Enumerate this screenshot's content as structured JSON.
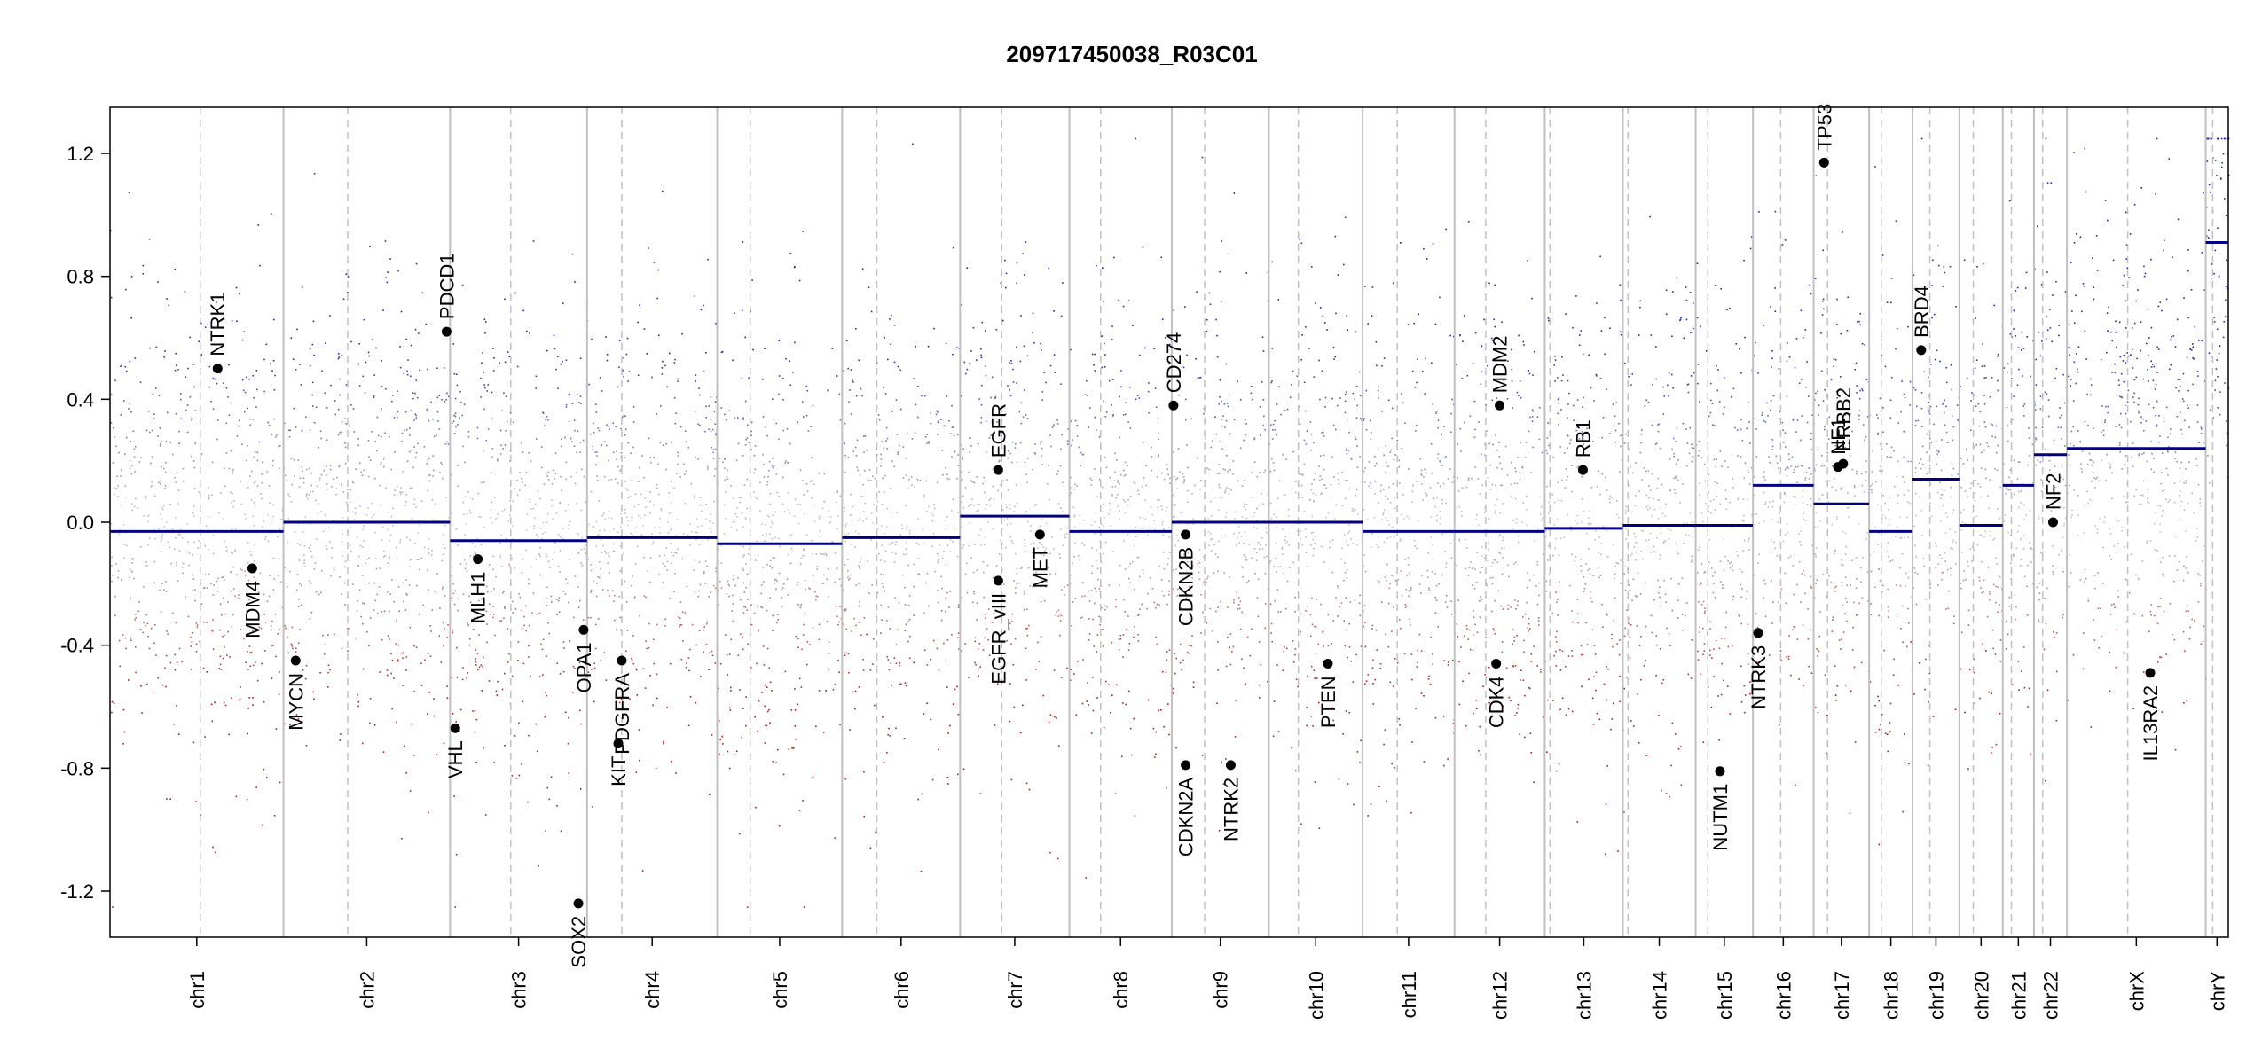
{
  "chart_data": {
    "type": "scatter",
    "title": "209717450038_R03C01",
    "xlabel": "",
    "ylabel": "",
    "ylim": [
      -1.35,
      1.35
    ],
    "yticks": [
      -1.2,
      -0.8,
      -0.4,
      0.0,
      0.4,
      0.8,
      1.2
    ],
    "ytick_labels": [
      "-1.2",
      "-0.8",
      "-0.4",
      "0.0",
      "0.4",
      "0.8",
      "1.2"
    ],
    "grid": false,
    "colors": {
      "gain": "#1f2a9c",
      "loss": "#a81c1c",
      "neutral": "#c8c8c8",
      "segment": "#000080",
      "boundary": "#c0c0c0",
      "centromere": "#c0c0c0",
      "gene_point": "#000000"
    },
    "chromosomes": [
      {
        "name": "chr1",
        "start": 0,
        "end": 1.0,
        "centromere": 0.52,
        "segment": -0.03
      },
      {
        "name": "chr2",
        "start": 1.0,
        "end": 1.96,
        "centromere": 1.37,
        "segment": 0.0
      },
      {
        "name": "chr3",
        "start": 1.96,
        "end": 2.75,
        "centromere": 2.31,
        "segment": -0.06
      },
      {
        "name": "chr4",
        "start": 2.75,
        "end": 3.5,
        "centromere": 2.95,
        "segment": -0.05
      },
      {
        "name": "chr5",
        "start": 3.5,
        "end": 4.22,
        "centromere": 3.69,
        "segment": -0.07
      },
      {
        "name": "chr6",
        "start": 4.22,
        "end": 4.9,
        "centromere": 4.42,
        "segment": -0.05
      },
      {
        "name": "chr7",
        "start": 4.9,
        "end": 5.53,
        "centromere": 5.14,
        "segment": 0.02
      },
      {
        "name": "chr8",
        "start": 5.53,
        "end": 6.12,
        "centromere": 5.71,
        "segment": -0.03
      },
      {
        "name": "chr9",
        "start": 6.12,
        "end": 6.68,
        "centromere": 6.31,
        "segment": 0.0
      },
      {
        "name": "chr10",
        "start": 6.68,
        "end": 7.22,
        "centromere": 6.85,
        "segment": 0.0
      },
      {
        "name": "chr11",
        "start": 7.22,
        "end": 7.75,
        "centromere": 7.42,
        "segment": -0.03
      },
      {
        "name": "chr12",
        "start": 7.75,
        "end": 8.27,
        "centromere": 7.93,
        "segment": -0.03
      },
      {
        "name": "chr13",
        "start": 8.27,
        "end": 8.72,
        "centromere": 8.3,
        "segment": -0.02
      },
      {
        "name": "chr14",
        "start": 8.72,
        "end": 9.14,
        "centromere": 8.75,
        "segment": -0.01
      },
      {
        "name": "chr15",
        "start": 9.14,
        "end": 9.47,
        "centromere": 9.21,
        "segment": -0.01
      },
      {
        "name": "chr16",
        "start": 9.47,
        "end": 9.82,
        "centromere": 9.63,
        "segment": 0.12
      },
      {
        "name": "chr17",
        "start": 9.82,
        "end": 10.14,
        "centromere": 9.9,
        "segment": 0.06
      },
      {
        "name": "chr18",
        "start": 10.14,
        "end": 10.39,
        "centromere": 10.21,
        "segment": -0.03
      },
      {
        "name": "chr19",
        "start": 10.39,
        "end": 10.66,
        "centromere": 10.49,
        "segment": 0.14
      },
      {
        "name": "chr20",
        "start": 10.66,
        "end": 10.91,
        "centromere": 10.74,
        "segment": -0.01
      },
      {
        "name": "chr21",
        "start": 10.91,
        "end": 11.09,
        "centromere": 10.96,
        "segment": 0.12
      },
      {
        "name": "chr22",
        "start": 11.09,
        "end": 11.28,
        "centromere": 11.14,
        "segment": 0.22
      },
      {
        "name": "chrX",
        "start": 11.28,
        "end": 12.08,
        "centromere": 11.63,
        "segment": 0.24
      },
      {
        "name": "chrY",
        "start": 12.08,
        "end": 12.21,
        "centromere": 12.12,
        "segment": 0.91
      }
    ],
    "genes": [
      {
        "name": "NTRK1",
        "x": 0.62,
        "y": 0.5
      },
      {
        "name": "MDM4",
        "x": 0.82,
        "y": -0.15
      },
      {
        "name": "MYCN",
        "x": 1.07,
        "y": -0.45
      },
      {
        "name": "PDCD1",
        "x": 1.94,
        "y": 0.62
      },
      {
        "name": "VHL",
        "x": 1.99,
        "y": -0.67
      },
      {
        "name": "MLH1",
        "x": 2.12,
        "y": -0.12
      },
      {
        "name": "SOX2",
        "x": 2.7,
        "y": -1.24
      },
      {
        "name": "OPA1",
        "x": 2.73,
        "y": -0.35
      },
      {
        "name": "KIT",
        "x": 2.93,
        "y": -0.72
      },
      {
        "name": "PDGFRA",
        "x": 2.95,
        "y": -0.45
      },
      {
        "name": "EGFR",
        "x": 5.12,
        "y": 0.17
      },
      {
        "name": "EGFR_vIII",
        "x": 5.12,
        "y": -0.19
      },
      {
        "name": "MET",
        "x": 5.36,
        "y": -0.04
      },
      {
        "name": "CD274",
        "x": 6.13,
        "y": 0.38
      },
      {
        "name": "CDKN2B",
        "x": 6.2,
        "y": -0.04
      },
      {
        "name": "CDKN2A",
        "x": 6.2,
        "y": -0.79
      },
      {
        "name": "NTRK2",
        "x": 6.46,
        "y": -0.79
      },
      {
        "name": "PTEN",
        "x": 7.02,
        "y": -0.46
      },
      {
        "name": "CDK4",
        "x": 7.99,
        "y": -0.46
      },
      {
        "name": "MDM2",
        "x": 8.01,
        "y": 0.38
      },
      {
        "name": "RB1",
        "x": 8.49,
        "y": 0.17
      },
      {
        "name": "NUTM1",
        "x": 9.28,
        "y": -0.81
      },
      {
        "name": "NTRK3",
        "x": 9.5,
        "y": -0.36
      },
      {
        "name": "TP53",
        "x": 9.88,
        "y": 1.17
      },
      {
        "name": "NF1",
        "x": 9.96,
        "y": 0.18
      },
      {
        "name": "ERBB2",
        "x": 9.99,
        "y": 0.19
      },
      {
        "name": "BRD4",
        "x": 10.44,
        "y": 0.56
      },
      {
        "name": "NF2",
        "x": 11.2,
        "y": 0.0
      },
      {
        "name": "IL13RA2",
        "x": 11.76,
        "y": -0.49
      }
    ]
  }
}
